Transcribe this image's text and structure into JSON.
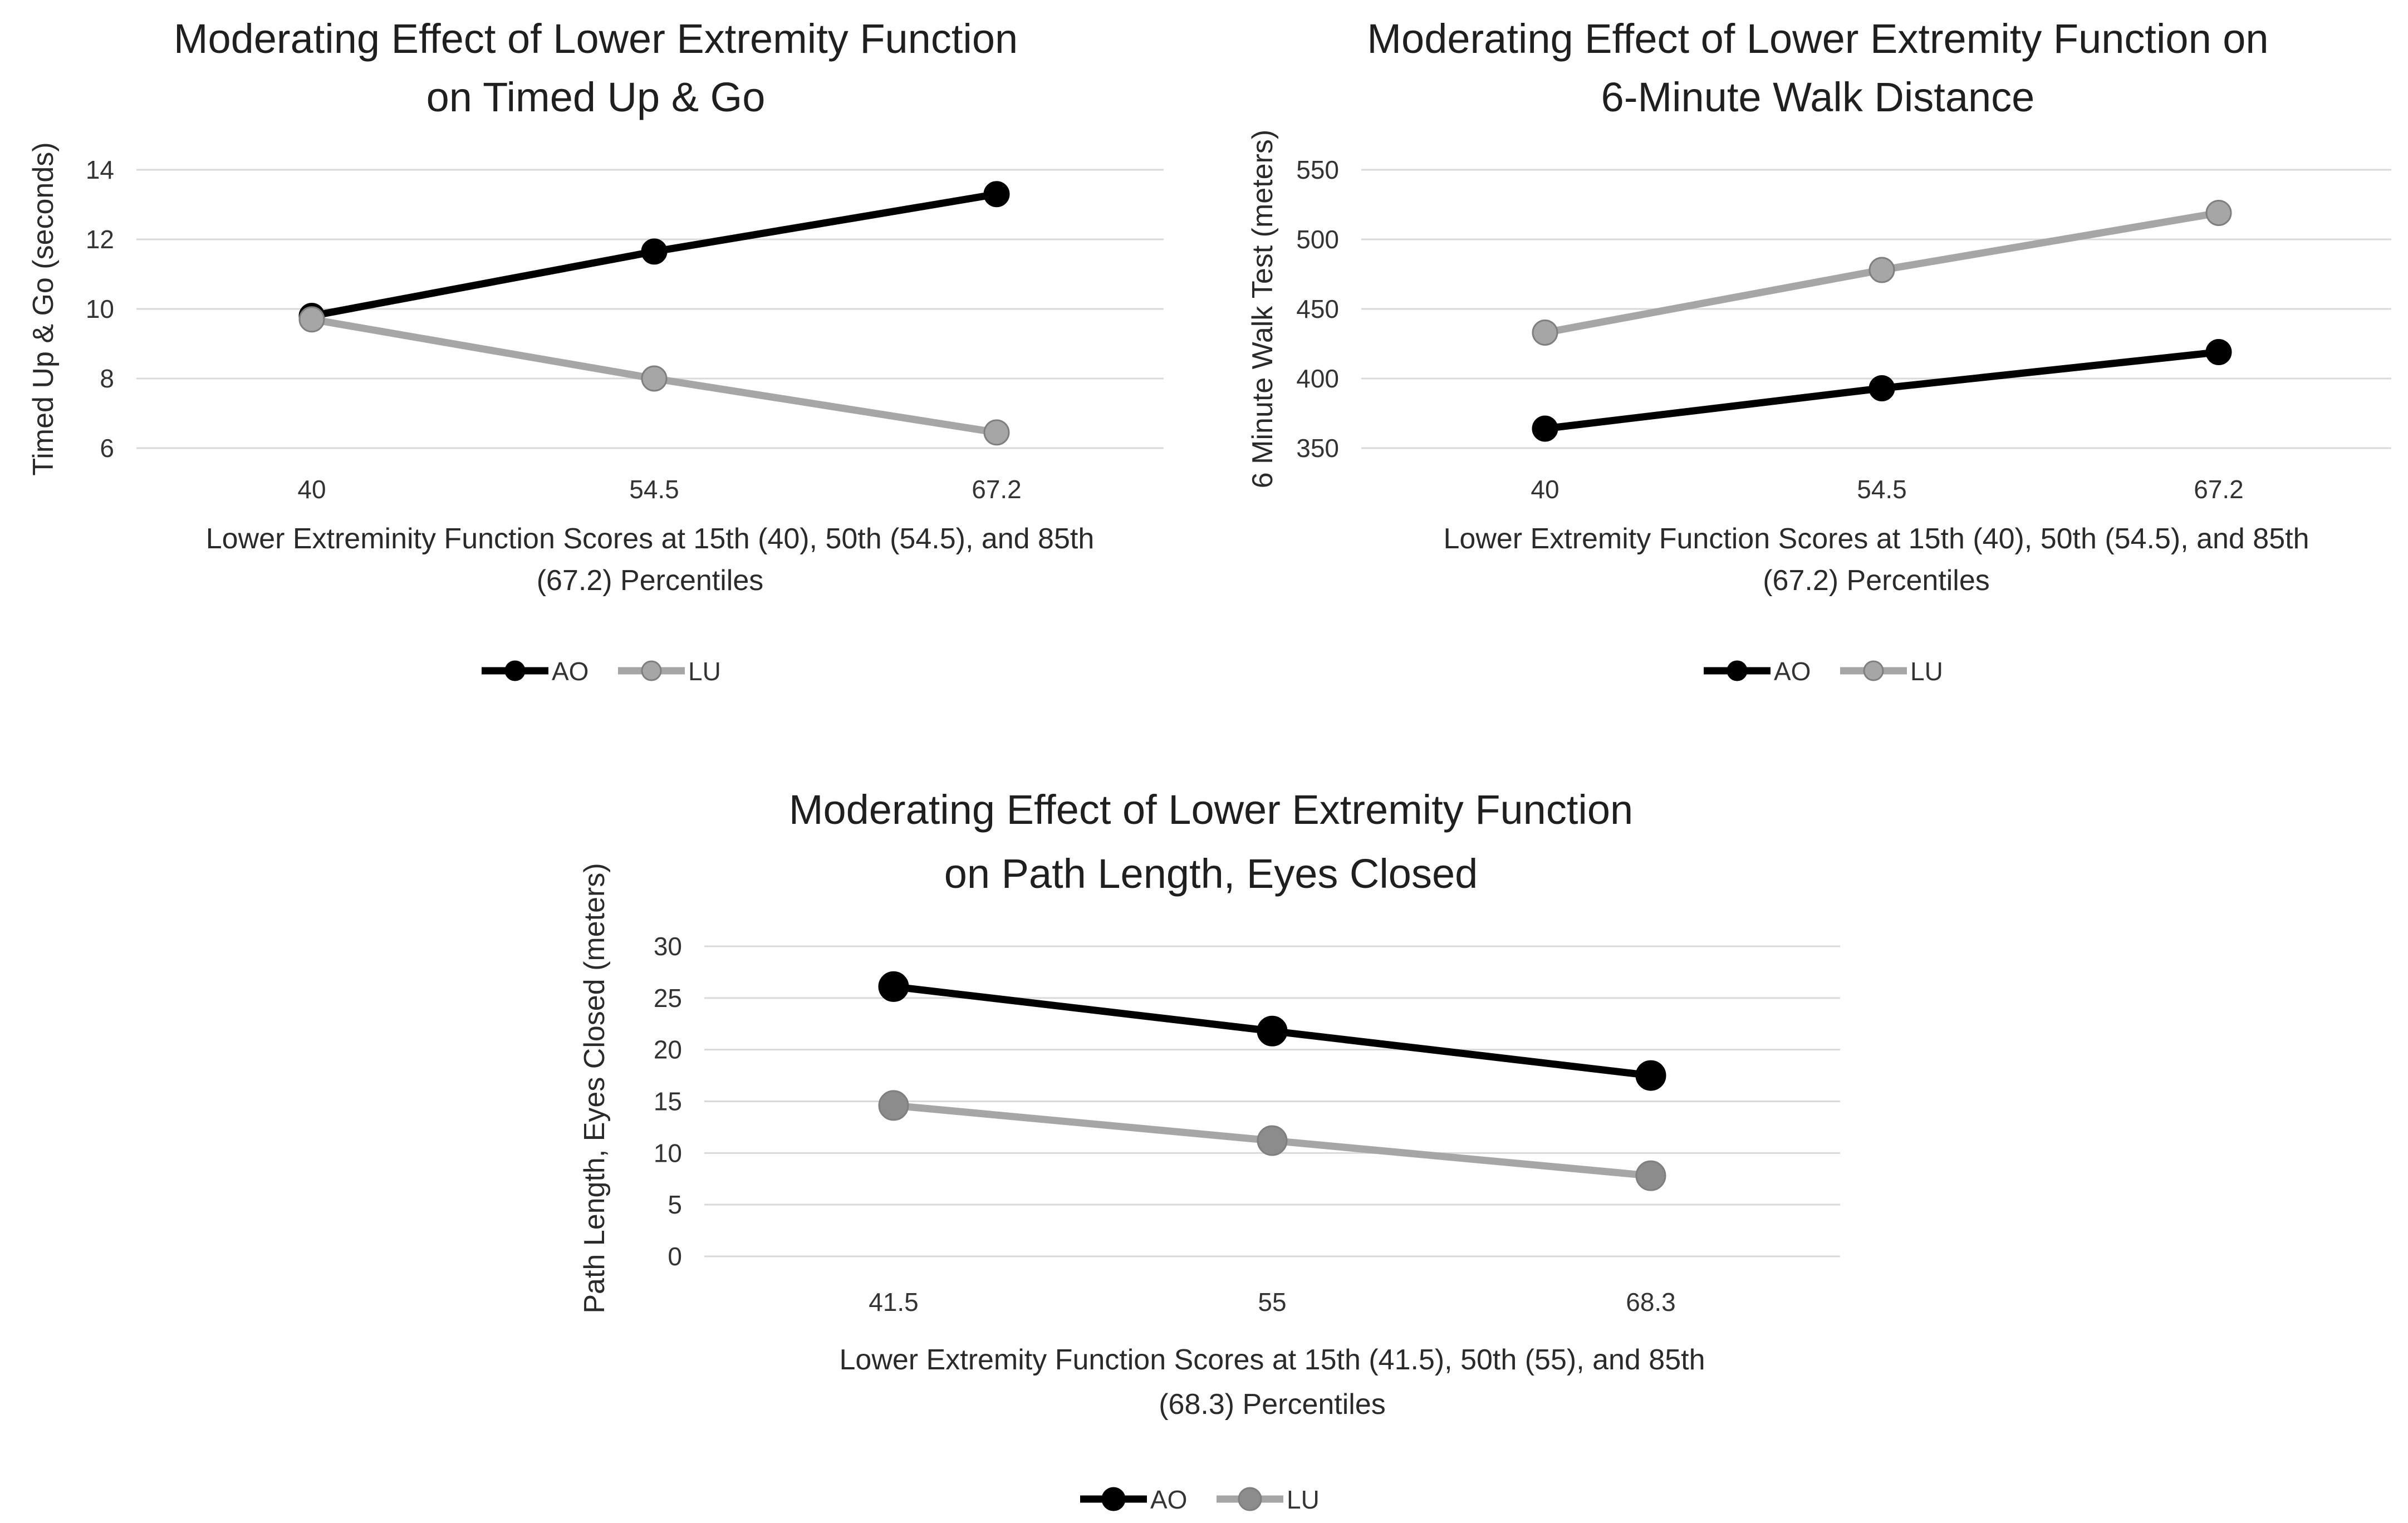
{
  "chart_data": [
    {
      "type": "line",
      "title": [
        "Moderating Effect of Lower Extremity Function",
        "on Timed Up & Go"
      ],
      "categories": [
        "40",
        "54.5",
        "67.2"
      ],
      "xlabel": [
        "Lower Extreminity Function Scores at 15th (40), 50th (54.5), and 85th",
        "(67.2) Percentiles"
      ],
      "ylabel": "Timed Up & Go (seconds)",
      "ylim": [
        6,
        14
      ],
      "yticks": [
        "6",
        "8",
        "10",
        "12",
        "14"
      ],
      "grid": true,
      "legend_position": "bottom",
      "series": [
        {
          "name": "AO",
          "values": [
            9.8,
            11.65,
            13.3
          ],
          "color": "#000000"
        },
        {
          "name": "LU",
          "values": [
            9.7,
            8.0,
            6.45
          ],
          "color": "#a6a6a6"
        }
      ]
    },
    {
      "type": "line",
      "title": [
        "Moderating Effect of Lower Extremity Function on",
        "6-Minute Walk Distance"
      ],
      "categories": [
        "40",
        "54.5",
        "67.2"
      ],
      "xlabel": [
        "Lower Extremity Function Scores at 15th (40), 50th (54.5), and 85th",
        "(67.2) Percentiles"
      ],
      "ylabel": "6 Minute Walk Test (meters)",
      "ylim": [
        350,
        550
      ],
      "yticks": [
        "350",
        "400",
        "450",
        "500",
        "550"
      ],
      "grid": true,
      "legend_position": "bottom",
      "series": [
        {
          "name": "AO",
          "values": [
            364,
            393,
            419
          ],
          "color": "#000000"
        },
        {
          "name": "LU",
          "values": [
            433,
            478,
            519
          ],
          "color": "#a6a6a6"
        }
      ]
    },
    {
      "type": "line",
      "title": [
        "Moderating Effect of Lower Extremity Function",
        "on Path Length, Eyes Closed"
      ],
      "categories": [
        "41.5",
        "55",
        "68.3"
      ],
      "xlabel": [
        "Lower Extremity Function Scores at 15th (41.5), 50th (55), and 85th",
        "(68.3) Percentiles"
      ],
      "ylabel": "Path Length, Eyes Closed (meters)",
      "ylim": [
        0,
        30
      ],
      "yticks": [
        "0",
        "5",
        "10",
        "15",
        "20",
        "25",
        "30"
      ],
      "grid": true,
      "legend_position": "bottom",
      "series": [
        {
          "name": "AO",
          "values": [
            26.1,
            21.8,
            17.5
          ],
          "color": "#000000"
        },
        {
          "name": "LU",
          "values": [
            14.6,
            11.2,
            7.8
          ],
          "color": "#a6a6a6",
          "marker_color": "#8c8c8c"
        }
      ]
    }
  ]
}
